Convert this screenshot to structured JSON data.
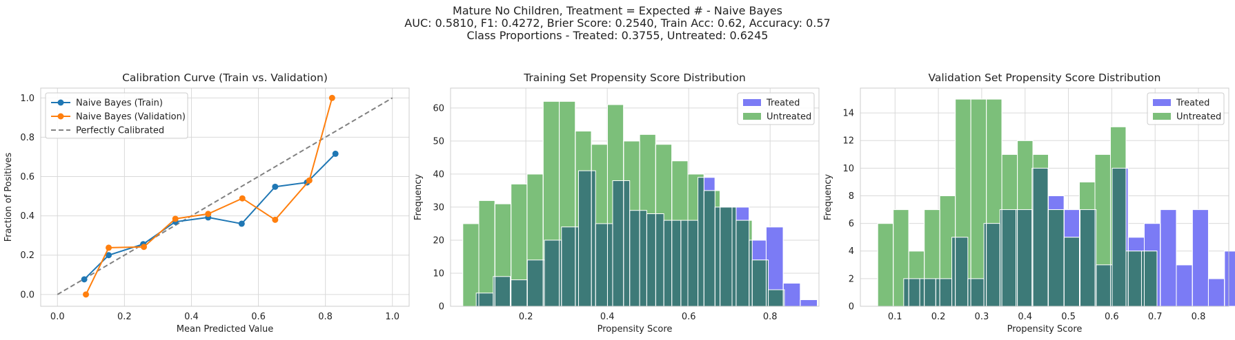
{
  "suptitle": {
    "line1": "Mature No Children, Treatment = Expected # - Naive Bayes",
    "line2": "AUC: 0.5810, F1: 0.4272, Brier Score: 0.2540, Train Acc: 0.62, Accuracy: 0.57",
    "line3": "Class Proportions - Treated: 0.3755, Untreated: 0.6245"
  },
  "colors": {
    "train": "#1f77b4",
    "validation": "#ff7f0e",
    "perfect": "#808080",
    "treated": "#7b7bf5",
    "untreated": "#7cbf7a",
    "overlap": "#3d7a78"
  },
  "chart_data": [
    {
      "type": "line",
      "title": "Calibration Curve (Train vs. Validation)",
      "xlabel": "Mean Predicted Value",
      "ylabel": "Fraction of Positives",
      "xlim": [
        -0.05,
        1.05
      ],
      "ylim": [
        -0.06,
        1.05
      ],
      "xticks": [
        "0.0",
        "0.2",
        "0.4",
        "0.6",
        "0.8",
        "1.0"
      ],
      "yticks": [
        "0.0",
        "0.2",
        "0.4",
        "0.6",
        "0.8",
        "1.0"
      ],
      "grid": true,
      "legend_position": "top-left",
      "series": [
        {
          "name": "Naive Bayes (Train)",
          "x": [
            0.08,
            0.153,
            0.256,
            0.352,
            0.45,
            0.55,
            0.65,
            0.745,
            0.83
          ],
          "y": [
            0.077,
            0.2,
            0.256,
            0.37,
            0.392,
            0.36,
            0.548,
            0.57,
            0.716
          ]
        },
        {
          "name": "Naive Bayes (Validation)",
          "x": [
            0.085,
            0.153,
            0.258,
            0.352,
            0.45,
            0.552,
            0.65,
            0.752,
            0.82
          ],
          "y": [
            0.0,
            0.238,
            0.242,
            0.385,
            0.41,
            0.489,
            0.38,
            0.58,
            1.0
          ]
        },
        {
          "name": "Perfectly Calibrated",
          "x": [
            0.0,
            1.0
          ],
          "y": [
            0.0,
            1.0
          ]
        }
      ]
    },
    {
      "type": "histogram",
      "title": "Training Set Propensity Score Distribution",
      "xlabel": "Propensity Score",
      "ylabel": "Frequency",
      "xlim": [
        0.015,
        0.92
      ],
      "ylim": [
        0,
        66
      ],
      "xticks": [
        "0.2",
        "0.4",
        "0.6",
        "0.8"
      ],
      "yticks": [
        "0",
        "10",
        "20",
        "30",
        "40",
        "50",
        "60"
      ],
      "grid": true,
      "legend_position": "top-right",
      "series": [
        {
          "name": "Treated",
          "bin_start": 0.078,
          "bin_width": 0.0419,
          "values": [
            4,
            9,
            8,
            14,
            20,
            24,
            41,
            25,
            38,
            29,
            28,
            26,
            26,
            39,
            30,
            30,
            20,
            24,
            7,
            2
          ]
        },
        {
          "name": "Untreated",
          "bin_start": 0.045,
          "bin_width": 0.0395,
          "values": [
            25,
            32,
            31,
            37,
            40,
            62,
            62,
            53,
            49,
            61,
            50,
            52,
            49,
            44,
            40,
            35,
            30,
            26,
            14,
            5
          ]
        }
      ]
    },
    {
      "type": "histogram",
      "title": "Validation Set Propensity Score Distribution",
      "xlabel": "Propensity Score",
      "ylabel": "Frequency",
      "xlim": [
        0.02,
        0.87
      ],
      "ylim": [
        0,
        15.8
      ],
      "xticks": [
        "0.1",
        "0.2",
        "0.3",
        "0.4",
        "0.5",
        "0.6",
        "0.7",
        "0.8"
      ],
      "yticks": [
        "0",
        "2",
        "4",
        "6",
        "8",
        "10",
        "12",
        "14"
      ],
      "grid": true,
      "legend_position": "top-right",
      "series": [
        {
          "name": "Treated",
          "bin_start": 0.12,
          "bin_width": 0.037,
          "values": [
            2,
            2,
            2,
            5,
            2,
            6,
            7,
            7,
            10,
            8,
            7,
            7,
            3,
            10,
            5,
            6,
            7,
            3,
            7,
            2,
            4
          ]
        },
        {
          "name": "Untreated",
          "bin_start": 0.06,
          "bin_width": 0.0358,
          "values": [
            6,
            7,
            4,
            7,
            8,
            15,
            15,
            15,
            11,
            12,
            11,
            7,
            5,
            9,
            11,
            13,
            4,
            4
          ]
        }
      ]
    }
  ]
}
